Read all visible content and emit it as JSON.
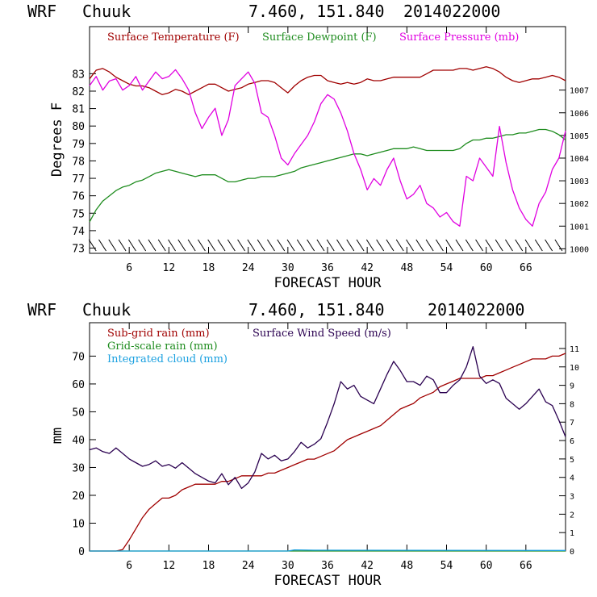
{
  "chart_data": [
    {
      "type": "line",
      "header": {
        "model": "WRF",
        "station": "Chuuk",
        "coords": "7.460, 151.840",
        "run": "2014022000"
      },
      "xlabel": "FORECAST HOUR",
      "ylabel": "Degrees F",
      "xlim": [
        0,
        72
      ],
      "xticks": [
        "6",
        "12",
        "18",
        "24",
        "30",
        "36",
        "42",
        "48",
        "54",
        "60",
        "66"
      ],
      "ylim": [
        72.7,
        85.7
      ],
      "yticks": [
        "73",
        "74",
        "75",
        "76",
        "77",
        "78",
        "79",
        "80",
        "81",
        "82",
        "83"
      ],
      "y2lim": [
        999.8,
        1009.8
      ],
      "y2ticks": [
        "1000",
        "1001",
        "1002",
        "1003",
        "1004",
        "1005",
        "1006",
        "1007"
      ],
      "wind_barbs": true,
      "series": [
        {
          "name": "Surface Temperature (F)",
          "color": "#a00000",
          "axis": "left",
          "x": [
            0,
            1,
            2,
            3,
            4,
            5,
            6,
            7,
            8,
            9,
            10,
            11,
            12,
            13,
            14,
            15,
            16,
            17,
            18,
            19,
            20,
            21,
            22,
            23,
            24,
            25,
            26,
            27,
            28,
            29,
            30,
            31,
            32,
            33,
            34,
            35,
            36,
            37,
            38,
            39,
            40,
            41,
            42,
            43,
            44,
            45,
            46,
            47,
            48,
            49,
            50,
            51,
            52,
            53,
            54,
            55,
            56,
            57,
            58,
            59,
            60,
            61,
            62,
            63,
            64,
            65,
            66,
            67,
            68,
            69,
            70,
            71,
            72
          ],
          "values": [
            82.7,
            83.2,
            83.3,
            83.1,
            82.8,
            82.6,
            82.4,
            82.3,
            82.3,
            82.2,
            82.0,
            81.8,
            81.9,
            82.1,
            82.0,
            81.8,
            82.0,
            82.2,
            82.4,
            82.4,
            82.2,
            82.0,
            82.1,
            82.2,
            82.4,
            82.5,
            82.6,
            82.6,
            82.5,
            82.2,
            81.9,
            82.3,
            82.6,
            82.8,
            82.9,
            82.9,
            82.6,
            82.5,
            82.4,
            82.5,
            82.4,
            82.5,
            82.7,
            82.6,
            82.6,
            82.7,
            82.8,
            82.8,
            82.8,
            82.8,
            82.8,
            83.0,
            83.2,
            83.2,
            83.2,
            83.2,
            83.3,
            83.3,
            83.2,
            83.3,
            83.4,
            83.3,
            83.1,
            82.8,
            82.6,
            82.5,
            82.6,
            82.7,
            82.7,
            82.8,
            82.9,
            82.8,
            82.6
          ]
        },
        {
          "name": "Surface Dewpoint (F)",
          "color": "#1e8c1e",
          "axis": "left",
          "x": [
            0,
            1,
            2,
            3,
            4,
            5,
            6,
            7,
            8,
            9,
            10,
            11,
            12,
            13,
            14,
            15,
            16,
            17,
            18,
            19,
            20,
            21,
            22,
            23,
            24,
            25,
            26,
            27,
            28,
            29,
            30,
            31,
            32,
            33,
            34,
            35,
            36,
            37,
            38,
            39,
            40,
            41,
            42,
            43,
            44,
            45,
            46,
            47,
            48,
            49,
            50,
            51,
            52,
            53,
            54,
            55,
            56,
            57,
            58,
            59,
            60,
            61,
            62,
            63,
            64,
            65,
            66,
            67,
            68,
            69,
            70,
            71,
            72
          ],
          "values": [
            74.5,
            75.2,
            75.7,
            76.0,
            76.3,
            76.5,
            76.6,
            76.8,
            76.9,
            77.1,
            77.3,
            77.4,
            77.5,
            77.4,
            77.3,
            77.2,
            77.1,
            77.2,
            77.2,
            77.2,
            77.0,
            76.8,
            76.8,
            76.9,
            77.0,
            77.0,
            77.1,
            77.1,
            77.1,
            77.2,
            77.3,
            77.4,
            77.6,
            77.7,
            77.8,
            77.9,
            78.0,
            78.1,
            78.2,
            78.3,
            78.4,
            78.4,
            78.3,
            78.4,
            78.5,
            78.6,
            78.7,
            78.7,
            78.7,
            78.8,
            78.7,
            78.6,
            78.6,
            78.6,
            78.6,
            78.6,
            78.7,
            79.0,
            79.2,
            79.2,
            79.3,
            79.3,
            79.4,
            79.5,
            79.5,
            79.6,
            79.6,
            79.7,
            79.8,
            79.8,
            79.7,
            79.5,
            79.2
          ]
        },
        {
          "name": "Surface Pressure (mb)",
          "color": "#e000e0",
          "axis": "right",
          "x": [
            0,
            1,
            2,
            3,
            4,
            5,
            6,
            7,
            8,
            9,
            10,
            11,
            12,
            13,
            14,
            15,
            16,
            17,
            18,
            19,
            20,
            21,
            22,
            23,
            24,
            25,
            26,
            27,
            28,
            29,
            30,
            31,
            32,
            33,
            34,
            35,
            36,
            37,
            38,
            39,
            40,
            41,
            42,
            43,
            44,
            45,
            46,
            47,
            48,
            49,
            50,
            51,
            52,
            53,
            54,
            55,
            56,
            57,
            58,
            59,
            60,
            61,
            62,
            63,
            64,
            65,
            66,
            67,
            68,
            69,
            70,
            71,
            72
          ],
          "values": [
            1007.2,
            1007.6,
            1007.0,
            1007.4,
            1007.5,
            1007.0,
            1007.2,
            1007.6,
            1007.0,
            1007.4,
            1007.8,
            1007.5,
            1007.6,
            1007.9,
            1007.5,
            1007.0,
            1006.0,
            1005.3,
            1005.8,
            1006.2,
            1005.0,
            1005.7,
            1007.2,
            1007.5,
            1007.8,
            1007.3,
            1006.0,
            1005.8,
            1005.0,
            1004.0,
            1003.7,
            1004.2,
            1004.6,
            1005.0,
            1005.6,
            1006.4,
            1006.8,
            1006.6,
            1006.0,
            1005.2,
            1004.2,
            1003.5,
            1002.6,
            1003.1,
            1002.8,
            1003.5,
            1004.0,
            1003.0,
            1002.2,
            1002.4,
            1002.8,
            1002.0,
            1001.8,
            1001.4,
            1001.6,
            1001.2,
            1001.0,
            1003.2,
            1003.0,
            1004.0,
            1003.6,
            1003.2,
            1005.4,
            1003.8,
            1002.6,
            1001.8,
            1001.3,
            1001.0,
            1002.0,
            1002.5,
            1003.5,
            1004.0,
            1005.2
          ]
        }
      ]
    },
    {
      "type": "line",
      "header": {
        "model": "WRF",
        "station": "Chuuk",
        "coords": "7.460, 151.840",
        "run": "2014022000"
      },
      "xlabel": "FORECAST HOUR",
      "ylabel": "mm",
      "xlim": [
        0,
        72
      ],
      "xticks": [
        "6",
        "12",
        "18",
        "24",
        "30",
        "36",
        "42",
        "48",
        "54",
        "60",
        "66"
      ],
      "ylim": [
        0,
        82
      ],
      "yticks": [
        "0",
        "10",
        "20",
        "30",
        "40",
        "50",
        "60",
        "70"
      ],
      "y2lim": [
        0,
        12.4
      ],
      "y2ticks": [
        "0",
        "1",
        "2",
        "3",
        "4",
        "5",
        "6",
        "7",
        "8",
        "9",
        "10",
        "11"
      ],
      "series": [
        {
          "name": "Sub-grid rain (mm)",
          "color": "#a00000",
          "axis": "left",
          "x": [
            0,
            1,
            2,
            3,
            4,
            5,
            6,
            7,
            8,
            9,
            10,
            11,
            12,
            13,
            14,
            15,
            16,
            17,
            18,
            19,
            20,
            21,
            22,
            23,
            24,
            25,
            26,
            27,
            28,
            29,
            30,
            31,
            32,
            33,
            34,
            35,
            36,
            37,
            38,
            39,
            40,
            41,
            42,
            43,
            44,
            45,
            46,
            47,
            48,
            49,
            50,
            51,
            52,
            53,
            54,
            55,
            56,
            57,
            58,
            59,
            60,
            61,
            62,
            63,
            64,
            65,
            66,
            67,
            68,
            69,
            70,
            71,
            72
          ],
          "values": [
            0,
            0,
            0,
            0,
            0,
            0.5,
            4,
            8,
            12,
            15,
            17,
            19,
            19,
            20,
            22,
            23,
            24,
            24,
            24,
            24,
            25,
            25,
            26,
            27,
            27,
            27,
            27,
            28,
            28,
            29,
            30,
            31,
            32,
            33,
            33,
            34,
            35,
            36,
            38,
            40,
            41,
            42,
            43,
            44,
            45,
            47,
            49,
            51,
            52,
            53,
            55,
            56,
            57,
            59,
            60,
            61,
            62,
            62,
            62,
            62,
            63,
            63,
            64,
            65,
            66,
            67,
            68,
            69,
            69,
            69,
            70,
            70,
            71
          ]
        },
        {
          "name": "Grid-scale rain (mm)",
          "color": "#1e8c1e",
          "axis": "left",
          "x": [
            0,
            36,
            72
          ],
          "values": [
            0,
            0,
            0
          ]
        },
        {
          "name": "Integrated cloud (mm)",
          "color": "#1aa0e0",
          "axis": "left",
          "x": [
            0,
            30,
            31,
            34,
            72
          ],
          "values": [
            0,
            0,
            0.4,
            0.3,
            0.2
          ]
        },
        {
          "name": "Surface Wind Speed (m/s)",
          "color": "#2a0050",
          "axis": "right",
          "x": [
            0,
            1,
            2,
            3,
            4,
            5,
            6,
            7,
            8,
            9,
            10,
            11,
            12,
            13,
            14,
            15,
            16,
            17,
            18,
            19,
            20,
            21,
            22,
            23,
            24,
            25,
            26,
            27,
            28,
            29,
            30,
            31,
            32,
            33,
            34,
            35,
            36,
            37,
            38,
            39,
            40,
            41,
            42,
            43,
            44,
            45,
            46,
            47,
            48,
            49,
            50,
            51,
            52,
            53,
            54,
            55,
            56,
            57,
            58,
            59,
            60,
            61,
            62,
            63,
            64,
            65,
            66,
            67,
            68,
            69,
            70,
            71,
            72
          ],
          "values": [
            5.5,
            5.6,
            5.4,
            5.3,
            5.6,
            5.3,
            5.0,
            4.8,
            4.6,
            4.7,
            4.9,
            4.6,
            4.7,
            4.5,
            4.8,
            4.5,
            4.2,
            4.0,
            3.8,
            3.7,
            4.2,
            3.6,
            4.0,
            3.4,
            3.7,
            4.3,
            5.3,
            5.0,
            5.2,
            4.9,
            5.0,
            5.4,
            5.9,
            5.6,
            5.8,
            6.1,
            7.0,
            8.0,
            9.2,
            8.8,
            9.0,
            8.4,
            8.2,
            8.0,
            8.8,
            9.6,
            10.3,
            9.8,
            9.2,
            9.2,
            9.0,
            9.5,
            9.3,
            8.6,
            8.6,
            9.0,
            9.3,
            10.0,
            11.1,
            9.5,
            9.1,
            9.3,
            9.1,
            8.3,
            8.0,
            7.7,
            8.0,
            8.4,
            8.8,
            8.1,
            7.9,
            7.1,
            6.2
          ]
        }
      ]
    }
  ]
}
